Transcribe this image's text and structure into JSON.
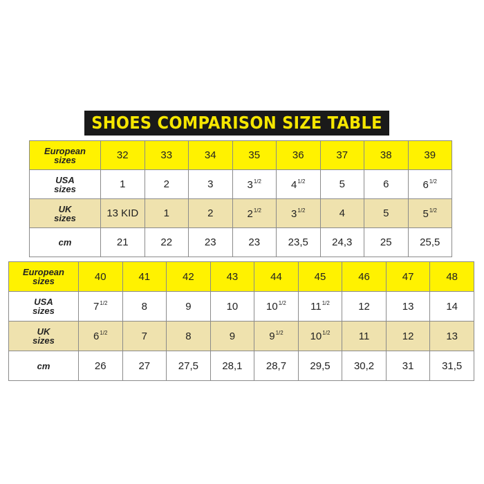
{
  "title": "SHOES COMPARISON SIZE TABLE",
  "colors": {
    "header_yellow": "#fff200",
    "uk_row": "#efe2ae",
    "title_bg": "#1a1a1a",
    "title_text": "#f5e600"
  },
  "row_labels": {
    "eu": [
      "European",
      "sizes"
    ],
    "us": [
      "USA",
      "sizes"
    ],
    "uk": [
      "UK",
      "sizes"
    ],
    "cm": [
      "cm"
    ]
  },
  "tables": [
    {
      "eu": [
        {
          "v": "32"
        },
        {
          "v": "33"
        },
        {
          "v": "34"
        },
        {
          "v": "35"
        },
        {
          "v": "36"
        },
        {
          "v": "37"
        },
        {
          "v": "38"
        },
        {
          "v": "39"
        }
      ],
      "us": [
        {
          "v": "1"
        },
        {
          "v": "2"
        },
        {
          "v": "3"
        },
        {
          "v": "3",
          "sup": "1/2"
        },
        {
          "v": "4",
          "sup": "1/2"
        },
        {
          "v": "5"
        },
        {
          "v": "6"
        },
        {
          "v": "6",
          "sup": "1/2"
        }
      ],
      "uk": [
        {
          "v": "13 KID"
        },
        {
          "v": "1"
        },
        {
          "v": "2"
        },
        {
          "v": "2",
          "sup": "1/2"
        },
        {
          "v": "3",
          "sup": "1/2"
        },
        {
          "v": "4"
        },
        {
          "v": "5"
        },
        {
          "v": "5",
          "sup": "1/2"
        }
      ],
      "cm": [
        {
          "v": "21"
        },
        {
          "v": "22"
        },
        {
          "v": "23"
        },
        {
          "v": "23"
        },
        {
          "v": "23,5"
        },
        {
          "v": "24,3"
        },
        {
          "v": "25"
        },
        {
          "v": "25,5"
        }
      ]
    },
    {
      "eu": [
        {
          "v": "40"
        },
        {
          "v": "41"
        },
        {
          "v": "42"
        },
        {
          "v": "43"
        },
        {
          "v": "44"
        },
        {
          "v": "45"
        },
        {
          "v": "46"
        },
        {
          "v": "47"
        },
        {
          "v": "48"
        }
      ],
      "us": [
        {
          "v": "7",
          "sup": "1/2"
        },
        {
          "v": "8"
        },
        {
          "v": "9"
        },
        {
          "v": "10"
        },
        {
          "v": "10",
          "sup": "1/2"
        },
        {
          "v": "11",
          "sup": "1/2"
        },
        {
          "v": "12"
        },
        {
          "v": "13"
        },
        {
          "v": "14"
        }
      ],
      "uk": [
        {
          "v": "6",
          "sup": "1/2"
        },
        {
          "v": "7"
        },
        {
          "v": "8"
        },
        {
          "v": "9"
        },
        {
          "v": "9",
          "sup": "1/2"
        },
        {
          "v": "10",
          "sup": "1/2"
        },
        {
          "v": "11"
        },
        {
          "v": "12"
        },
        {
          "v": "13"
        }
      ],
      "cm": [
        {
          "v": "26"
        },
        {
          "v": "27"
        },
        {
          "v": "27,5"
        },
        {
          "v": "28,1"
        },
        {
          "v": "28,7"
        },
        {
          "v": "29,5"
        },
        {
          "v": "30,2"
        },
        {
          "v": "31"
        },
        {
          "v": "31,5"
        }
      ]
    }
  ]
}
